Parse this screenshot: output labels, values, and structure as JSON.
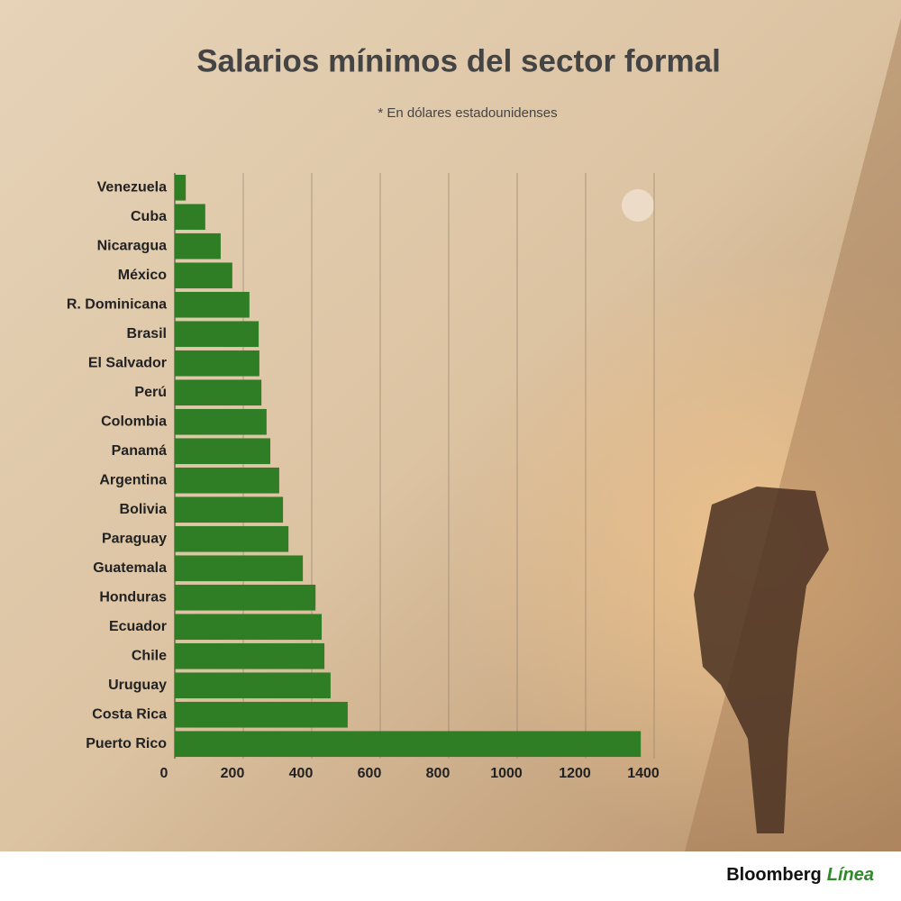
{
  "chart_data": {
    "type": "hbar",
    "title": "Salarios mínimos del sector formal",
    "subtitle": "* En dólares estadounidenses",
    "categories": [
      "Venezuela",
      "Cuba",
      "Nicaragua",
      "México",
      "R. Dominicana",
      "Brasil",
      "El Salvador",
      "Perú",
      "Colombia",
      "Panamá",
      "Argentina",
      "Bolivia",
      "Paraguay",
      "Guatemala",
      "Honduras",
      "Ecuador",
      "Chile",
      "Uruguay",
      "Costa Rica",
      "Puerto Rico"
    ],
    "values": [
      32,
      89,
      134,
      168,
      218,
      245,
      247,
      253,
      268,
      279,
      305,
      316,
      332,
      374,
      411,
      429,
      437,
      455,
      505,
      1361
    ],
    "color": "#2f7d24",
    "xlim": [
      0,
      1400
    ],
    "xticks": [
      0,
      200,
      400,
      600,
      800,
      1000,
      1200,
      1400
    ],
    "grid": true
  },
  "footer": {
    "brand": "Bloomberg",
    "brand_accent": "Línea"
  }
}
